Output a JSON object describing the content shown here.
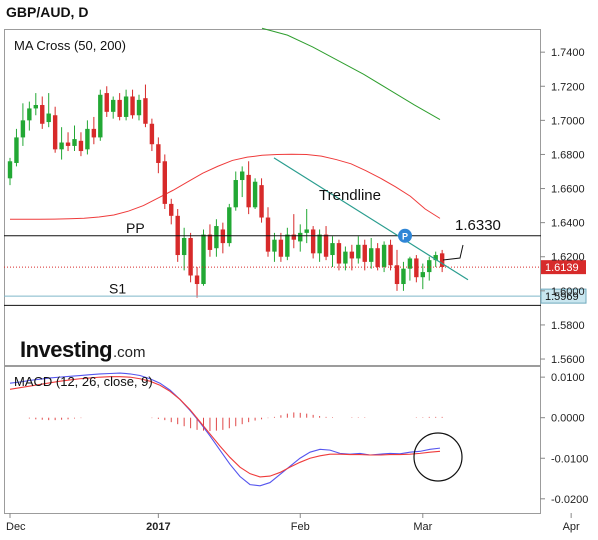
{
  "header": {
    "title": "GBP/AUD, D"
  },
  "chart_data": [
    {
      "type": "candlestick",
      "title": "MA Cross (50, 200)",
      "ylim": [
        1.5565,
        1.753
      ],
      "y_ticks": [
        "1.7400",
        "1.7200",
        "1.7000",
        "1.6800",
        "1.6600",
        "1.6400",
        "1.6200",
        "1.6000",
        "1.5800",
        "1.5600"
      ],
      "y_tick_values": [
        1.74,
        1.72,
        1.7,
        1.68,
        1.66,
        1.64,
        1.62,
        1.6,
        1.58,
        1.56
      ],
      "annotations": {
        "pp_label": "PP",
        "pp_value": 1.6323,
        "s1_label": "S1",
        "s1_value": 1.5915,
        "trendline_label": "Trendline",
        "target_label": "1.6330",
        "last_price": "1.6139",
        "last_price_value": 1.6139,
        "s1_price": "1.5969",
        "s1_price_value": 1.5969
      },
      "series": [
        {
          "name": "MA 50",
          "color": "#ef3b3b",
          "values": [
            1.642,
            1.642,
            1.642,
            1.6421,
            1.6423,
            1.6426,
            1.6433,
            1.6445,
            1.6468,
            1.65,
            1.6545,
            1.659,
            1.664,
            1.669,
            1.673,
            1.6765,
            1.6784,
            1.6795,
            1.68,
            1.6801,
            1.68,
            1.679,
            1.677,
            1.6745,
            1.6705,
            1.666,
            1.661,
            1.6555,
            1.648,
            1.6425
          ]
        },
        {
          "name": "MA 200",
          "color": "#2e9e2e",
          "values": [
            1.754,
            1.75,
            1.743,
            1.735,
            1.727,
            1.718,
            1.709,
            1.7005
          ]
        }
      ],
      "candles": [
        {
          "o": 1.666,
          "h": 1.678,
          "l": 1.662,
          "c": 1.676
        },
        {
          "o": 1.675,
          "h": 1.695,
          "l": 1.673,
          "c": 1.69
        },
        {
          "o": 1.69,
          "h": 1.71,
          "l": 1.685,
          "c": 1.7
        },
        {
          "o": 1.7,
          "h": 1.711,
          "l": 1.694,
          "c": 1.707
        },
        {
          "o": 1.707,
          "h": 1.716,
          "l": 1.703,
          "c": 1.709
        },
        {
          "o": 1.709,
          "h": 1.714,
          "l": 1.695,
          "c": 1.698
        },
        {
          "o": 1.699,
          "h": 1.716,
          "l": 1.696,
          "c": 1.704
        },
        {
          "o": 1.703,
          "h": 1.708,
          "l": 1.681,
          "c": 1.683
        },
        {
          "o": 1.683,
          "h": 1.696,
          "l": 1.677,
          "c": 1.687
        },
        {
          "o": 1.687,
          "h": 1.693,
          "l": 1.682,
          "c": 1.685
        },
        {
          "o": 1.685,
          "h": 1.697,
          "l": 1.682,
          "c": 1.689
        },
        {
          "o": 1.688,
          "h": 1.693,
          "l": 1.679,
          "c": 1.682
        },
        {
          "o": 1.683,
          "h": 1.7,
          "l": 1.68,
          "c": 1.695
        },
        {
          "o": 1.695,
          "h": 1.702,
          "l": 1.686,
          "c": 1.69
        },
        {
          "o": 1.69,
          "h": 1.718,
          "l": 1.688,
          "c": 1.715
        },
        {
          "o": 1.716,
          "h": 1.72,
          "l": 1.702,
          "c": 1.705
        },
        {
          "o": 1.705,
          "h": 1.714,
          "l": 1.701,
          "c": 1.712
        },
        {
          "o": 1.712,
          "h": 1.716,
          "l": 1.7,
          "c": 1.702
        },
        {
          "o": 1.702,
          "h": 1.718,
          "l": 1.7,
          "c": 1.714
        },
        {
          "o": 1.714,
          "h": 1.718,
          "l": 1.701,
          "c": 1.703
        },
        {
          "o": 1.703,
          "h": 1.715,
          "l": 1.7,
          "c": 1.712
        },
        {
          "o": 1.713,
          "h": 1.721,
          "l": 1.696,
          "c": 1.698
        },
        {
          "o": 1.698,
          "h": 1.701,
          "l": 1.682,
          "c": 1.686
        },
        {
          "o": 1.686,
          "h": 1.69,
          "l": 1.669,
          "c": 1.675
        },
        {
          "o": 1.676,
          "h": 1.68,
          "l": 1.648,
          "c": 1.651
        },
        {
          "o": 1.651,
          "h": 1.654,
          "l": 1.639,
          "c": 1.644
        },
        {
          "o": 1.644,
          "h": 1.648,
          "l": 1.617,
          "c": 1.621
        },
        {
          "o": 1.621,
          "h": 1.637,
          "l": 1.612,
          "c": 1.631
        },
        {
          "o": 1.631,
          "h": 1.634,
          "l": 1.605,
          "c": 1.609
        },
        {
          "o": 1.609,
          "h": 1.614,
          "l": 1.596,
          "c": 1.604
        },
        {
          "o": 1.604,
          "h": 1.636,
          "l": 1.603,
          "c": 1.633
        },
        {
          "o": 1.633,
          "h": 1.639,
          "l": 1.62,
          "c": 1.624
        },
        {
          "o": 1.625,
          "h": 1.642,
          "l": 1.62,
          "c": 1.638
        },
        {
          "o": 1.636,
          "h": 1.64,
          "l": 1.622,
          "c": 1.628
        },
        {
          "o": 1.628,
          "h": 1.651,
          "l": 1.626,
          "c": 1.649
        },
        {
          "o": 1.649,
          "h": 1.67,
          "l": 1.647,
          "c": 1.665
        },
        {
          "o": 1.665,
          "h": 1.673,
          "l": 1.655,
          "c": 1.67
        },
        {
          "o": 1.668,
          "h": 1.676,
          "l": 1.645,
          "c": 1.649
        },
        {
          "o": 1.649,
          "h": 1.666,
          "l": 1.648,
          "c": 1.664
        },
        {
          "o": 1.662,
          "h": 1.666,
          "l": 1.64,
          "c": 1.643
        },
        {
          "o": 1.643,
          "h": 1.649,
          "l": 1.62,
          "c": 1.623
        },
        {
          "o": 1.623,
          "h": 1.634,
          "l": 1.617,
          "c": 1.63
        },
        {
          "o": 1.63,
          "h": 1.634,
          "l": 1.617,
          "c": 1.62
        },
        {
          "o": 1.62,
          "h": 1.637,
          "l": 1.618,
          "c": 1.633
        },
        {
          "o": 1.633,
          "h": 1.645,
          "l": 1.625,
          "c": 1.63
        },
        {
          "o": 1.629,
          "h": 1.639,
          "l": 1.623,
          "c": 1.634
        },
        {
          "o": 1.634,
          "h": 1.648,
          "l": 1.628,
          "c": 1.636
        },
        {
          "o": 1.636,
          "h": 1.638,
          "l": 1.619,
          "c": 1.622
        },
        {
          "o": 1.622,
          "h": 1.636,
          "l": 1.617,
          "c": 1.633
        },
        {
          "o": 1.633,
          "h": 1.638,
          "l": 1.618,
          "c": 1.62
        },
        {
          "o": 1.621,
          "h": 1.632,
          "l": 1.614,
          "c": 1.628
        },
        {
          "o": 1.628,
          "h": 1.63,
          "l": 1.612,
          "c": 1.616
        },
        {
          "o": 1.616,
          "h": 1.626,
          "l": 1.612,
          "c": 1.623
        },
        {
          "o": 1.623,
          "h": 1.627,
          "l": 1.612,
          "c": 1.619
        },
        {
          "o": 1.619,
          "h": 1.632,
          "l": 1.616,
          "c": 1.627
        },
        {
          "o": 1.627,
          "h": 1.63,
          "l": 1.612,
          "c": 1.617
        },
        {
          "o": 1.617,
          "h": 1.631,
          "l": 1.613,
          "c": 1.625
        },
        {
          "o": 1.625,
          "h": 1.628,
          "l": 1.612,
          "c": 1.614
        },
        {
          "o": 1.614,
          "h": 1.629,
          "l": 1.611,
          "c": 1.627
        },
        {
          "o": 1.627,
          "h": 1.63,
          "l": 1.612,
          "c": 1.615
        },
        {
          "o": 1.615,
          "h": 1.624,
          "l": 1.6,
          "c": 1.604
        },
        {
          "o": 1.604,
          "h": 1.617,
          "l": 1.6,
          "c": 1.613
        },
        {
          "o": 1.613,
          "h": 1.62,
          "l": 1.606,
          "c": 1.619
        },
        {
          "o": 1.619,
          "h": 1.621,
          "l": 1.605,
          "c": 1.608
        },
        {
          "o": 1.608,
          "h": 1.616,
          "l": 1.601,
          "c": 1.611
        },
        {
          "o": 1.611,
          "h": 1.62,
          "l": 1.606,
          "c": 1.618
        },
        {
          "o": 1.618,
          "h": 1.623,
          "l": 1.614,
          "c": 1.621
        },
        {
          "o": 1.622,
          "h": 1.624,
          "l": 1.611,
          "c": 1.614
        }
      ]
    },
    {
      "type": "bar",
      "title": "MACD (12, 26, close, 9)",
      "ylim": [
        -0.0235,
        0.0125
      ],
      "y_ticks": [
        "0.0100",
        "0.0000",
        "-0.0100",
        "-0.0200"
      ],
      "y_tick_values": [
        0.01,
        0.0,
        -0.01,
        -0.02
      ],
      "x_ticks": [
        "Dec",
        "2017",
        "Feb",
        "Mar",
        "Apr"
      ],
      "x_tick_bars": [
        0,
        23,
        45,
        64,
        87
      ],
      "series": [
        {
          "name": "MACD",
          "color": "#5555ee",
          "values": [
            0.0085,
            0.0088,
            0.0092,
            0.0095,
            0.0098,
            0.01,
            0.0102,
            0.0104,
            0.0106,
            0.0108,
            0.0109,
            0.011,
            0.0108,
            0.0104,
            0.0096,
            0.0085,
            0.0068,
            0.0045,
            0.0018,
            -0.0012,
            -0.0045,
            -0.008,
            -0.0115,
            -0.0145,
            -0.0165,
            -0.0168,
            -0.016,
            -0.014,
            -0.012,
            -0.01,
            -0.0085,
            -0.0078,
            -0.008,
            -0.0088,
            -0.009,
            -0.0088,
            -0.0092,
            -0.009,
            -0.0088,
            -0.0089,
            -0.0085,
            -0.0083,
            -0.0078,
            -0.0075
          ]
        },
        {
          "name": "Signal",
          "color": "#ef3b3b",
          "values": [
            0.007,
            0.0074,
            0.0078,
            0.0082,
            0.0086,
            0.009,
            0.0093,
            0.0096,
            0.0098,
            0.01,
            0.0101,
            0.0101,
            0.01,
            0.0096,
            0.009,
            0.008,
            0.0065,
            0.0045,
            0.002,
            -0.001,
            -0.004,
            -0.007,
            -0.0098,
            -0.0122,
            -0.0138,
            -0.0146,
            -0.0144,
            -0.0135,
            -0.0122,
            -0.011,
            -0.01,
            -0.0094,
            -0.009,
            -0.009,
            -0.0091,
            -0.0091,
            -0.0092,
            -0.0092,
            -0.0091,
            -0.0091,
            -0.009,
            -0.0088,
            -0.0085,
            -0.0083
          ]
        },
        {
          "name": "Histogram",
          "color": "#e04848",
          "values": [
            0.0,
            0.0,
            0.0,
            -0.0002,
            -0.0004,
            -0.0005,
            -0.0006,
            -0.0006,
            -0.0005,
            -0.0004,
            -0.0002,
            -0.0001,
            0.0,
            0.0,
            0.0,
            0.0,
            0.0,
            0.0,
            0.0,
            0.0,
            0.0,
            0.0,
            -0.0001,
            -0.0003,
            -0.0006,
            -0.0011,
            -0.0016,
            -0.0021,
            -0.0026,
            -0.003,
            -0.0032,
            -0.0033,
            -0.0032,
            -0.003,
            -0.0026,
            -0.0021,
            -0.0016,
            -0.0011,
            -0.0007,
            -0.0004,
            -0.0001,
            0.0002,
            0.0006,
            0.001,
            0.0013,
            0.0012,
            0.001,
            0.0007,
            0.0004,
            0.0002,
            0.0001,
            0.0,
            0.0,
            0.0001,
            0.0001,
            0.0001,
            0.0,
            0.0,
            0.0,
            0.0,
            0.0,
            0.0,
            0.0,
            0.0001,
            0.0001,
            0.0002,
            0.0002,
            0.0002
          ]
        }
      ]
    }
  ],
  "branding": {
    "logo_text": "Investing",
    "logo_suffix": ".com"
  }
}
